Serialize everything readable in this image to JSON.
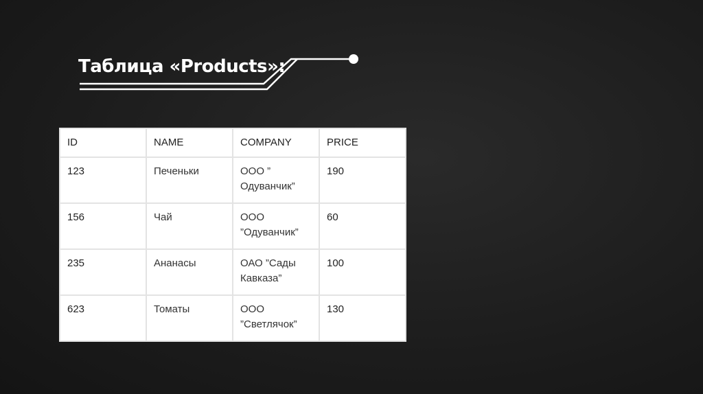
{
  "title": "Таблица «Products»:",
  "table": {
    "headers": [
      "ID",
      "NAME",
      "COMPANY",
      "PRICE"
    ],
    "rows": [
      {
        "id": "123",
        "name": "Печеньки",
        "company": "ООО ” Одуванчик”",
        "price": "190"
      },
      {
        "id": "156",
        "name": "Чай",
        "company": "ООО ”Одуванчик”",
        "price": "60"
      },
      {
        "id": "235",
        "name": "Ананасы",
        "company": "ОАО ”Сады Кавказа”",
        "price": "100"
      },
      {
        "id": "623",
        "name": "Томаты",
        "company": "ООО ”Светлячок”",
        "price": "130"
      }
    ]
  }
}
